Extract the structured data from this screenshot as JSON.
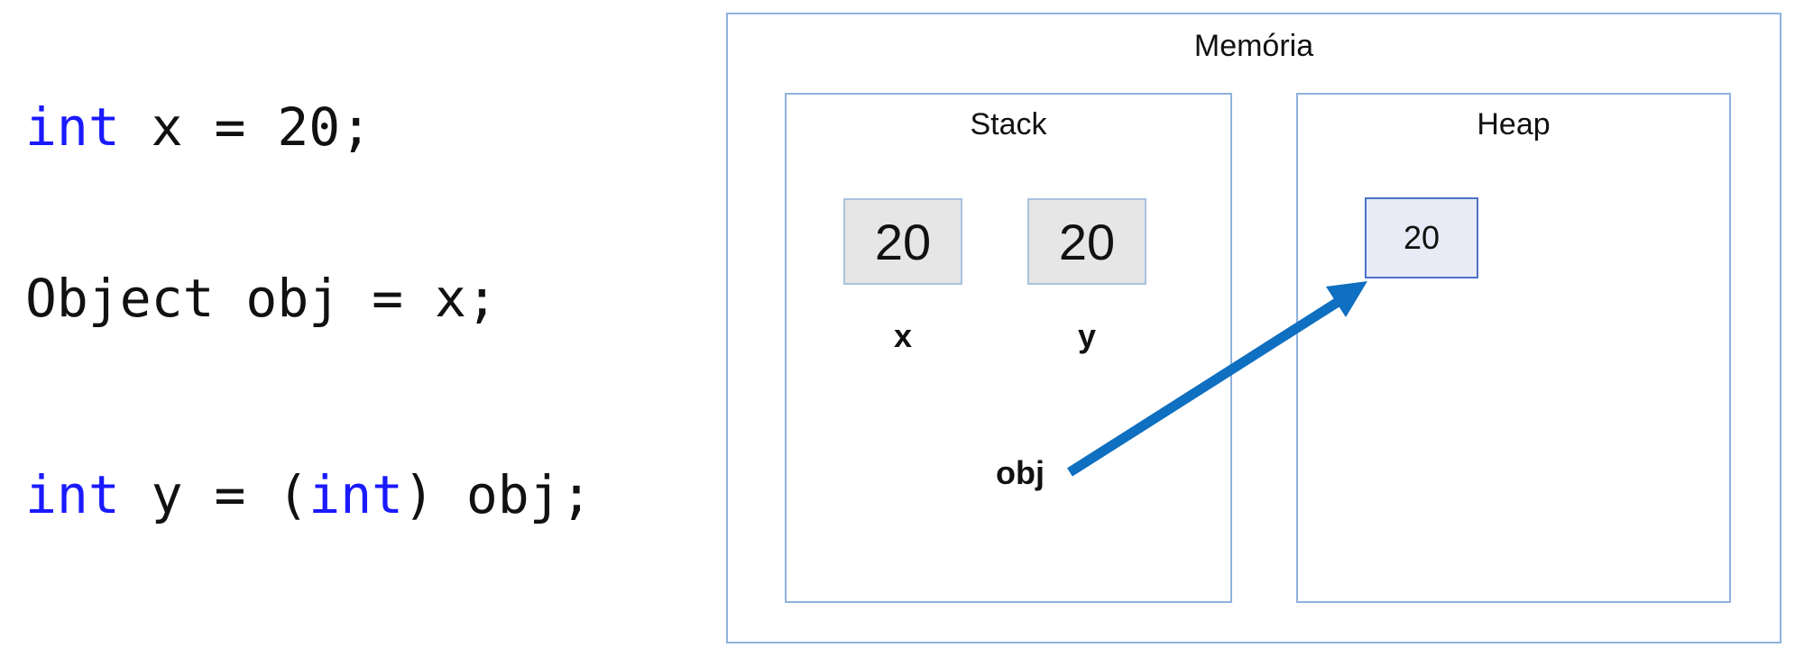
{
  "code": {
    "line1": {
      "kw": "int",
      "rest": " x = 20;"
    },
    "line2": {
      "text": "Object obj = x;"
    },
    "line3": {
      "kw1": "int",
      "mid": " y = (",
      "kw2": "int",
      "rest": ") obj;"
    }
  },
  "memory": {
    "title": "Memória",
    "stack": {
      "title": "Stack",
      "cells": [
        {
          "value": "20",
          "label": "x"
        },
        {
          "value": "20",
          "label": "y"
        }
      ],
      "reference": "obj"
    },
    "heap": {
      "title": "Heap",
      "cells": [
        {
          "value": "20"
        }
      ]
    }
  },
  "colors": {
    "keyword": "#1a1aff",
    "arrow": "#0f6fc0",
    "box_border": "#8fb3dc"
  }
}
